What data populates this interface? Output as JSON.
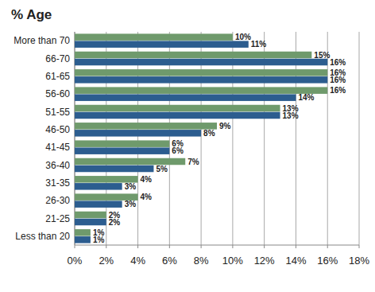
{
  "chart_data": {
    "type": "bar",
    "title": "% Age",
    "orientation": "horizontal",
    "categories": [
      "More than 70",
      "66-70",
      "61-65",
      "56-60",
      "51-55",
      "46-50",
      "41-45",
      "36-40",
      "31-35",
      "26-30",
      "21-25",
      "Less than 20"
    ],
    "series": [
      {
        "color": "#6f9a6c",
        "values": [
          10,
          15,
          16,
          16,
          13,
          9,
          6,
          7,
          4,
          4,
          2,
          1
        ],
        "value_labels": [
          "10%",
          "15%",
          "16%",
          "16%",
          "13%",
          "9%",
          "6%",
          "7%",
          "4%",
          "4%",
          "2%",
          "1%"
        ]
      },
      {
        "color": "#2c5d8f",
        "values": [
          11,
          16,
          16,
          14,
          13,
          8,
          6,
          5,
          3,
          3,
          2,
          1
        ],
        "value_labels": [
          "11%",
          "16%",
          "16%",
          "14%",
          "13%",
          "8%",
          "6%",
          "5%",
          "3%",
          "3%",
          "2%",
          "1%"
        ]
      }
    ],
    "xlim": [
      0,
      18
    ],
    "xticks": [
      {
        "value": 0,
        "label": "0%"
      },
      {
        "value": 2,
        "label": "2%"
      },
      {
        "value": 4,
        "label": "4%"
      },
      {
        "value": 6,
        "label": "6%"
      },
      {
        "value": 8,
        "label": "8%"
      },
      {
        "value": 10,
        "label": "10%"
      },
      {
        "value": 12,
        "label": "12%"
      },
      {
        "value": 14,
        "label": "14%"
      },
      {
        "value": 16,
        "label": "16%"
      },
      {
        "value": 18,
        "label": "18%"
      }
    ],
    "grid": true,
    "data_labels": true
  }
}
